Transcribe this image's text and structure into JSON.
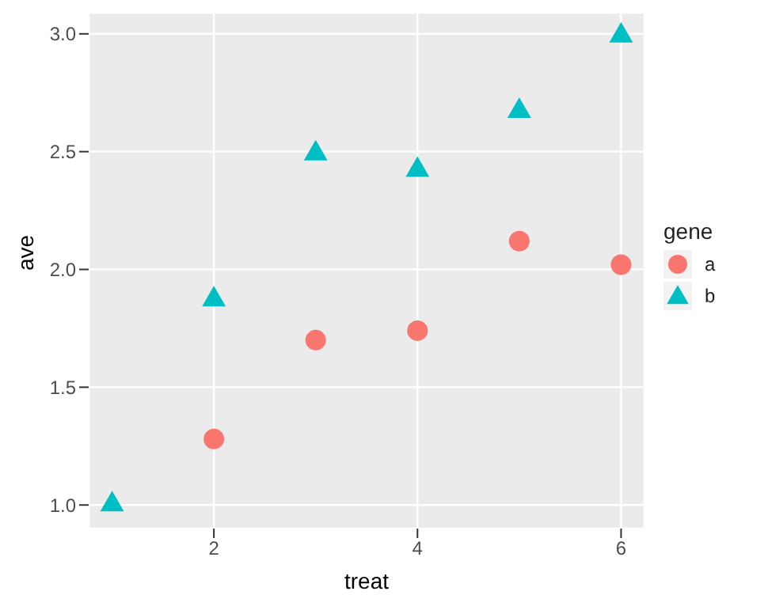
{
  "chart_data": {
    "type": "scatter",
    "xlabel": "treat",
    "ylabel": "ave",
    "legend_title": "gene",
    "x": [
      1,
      2,
      3,
      4,
      5,
      6
    ],
    "series": [
      {
        "name": "a",
        "color": "#f8766d",
        "marker": "circle",
        "values": [
          null,
          1.28,
          1.7,
          1.74,
          2.12,
          2.02
        ]
      },
      {
        "name": "b",
        "color": "#00bfc4",
        "marker": "triangle",
        "values": [
          1.01,
          1.88,
          2.5,
          2.43,
          2.68,
          3.0
        ]
      }
    ],
    "xlim": [
      0.77,
      6.23
    ],
    "xticks": [
      2,
      4,
      6
    ],
    "ylim": [
      0.9,
      3.09
    ],
    "yticks": [
      {
        "value": 1,
        "label": "1.0"
      },
      {
        "value": 1.5,
        "label": "1.5"
      },
      {
        "value": 2,
        "label": "2.0"
      },
      {
        "value": 2.5,
        "label": "2.5"
      },
      {
        "value": 3,
        "label": "3.0"
      }
    ],
    "grid": true,
    "legend": "right"
  }
}
